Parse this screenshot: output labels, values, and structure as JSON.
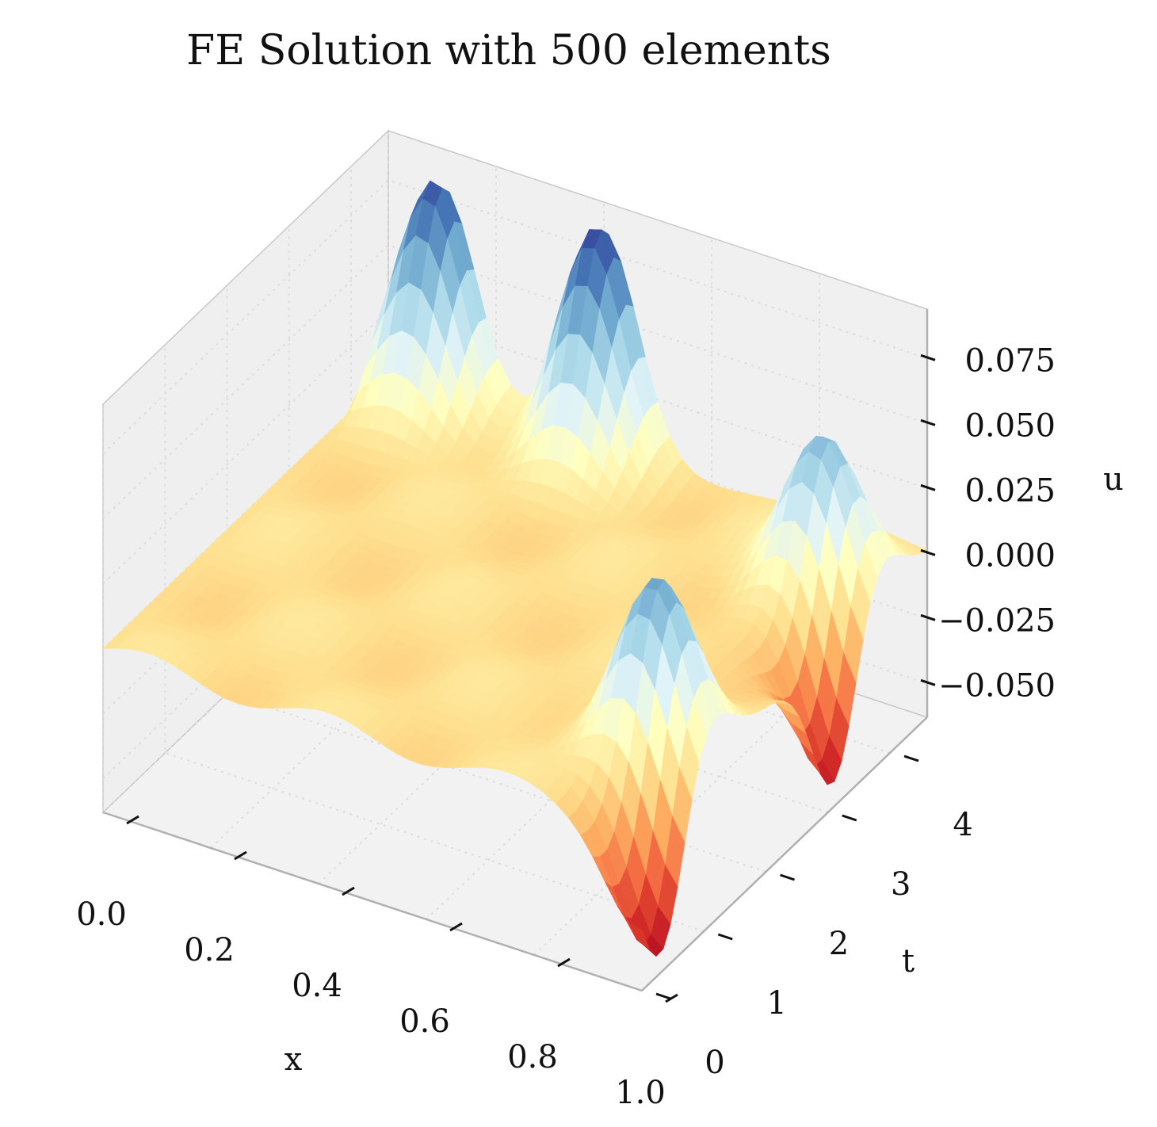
{
  "chart_data": {
    "type": "surface3d",
    "title": "FE Solution with 500 elements",
    "xlabel": "x",
    "ylabel": "t",
    "zlabel": "u",
    "xlim": [
      0.0,
      1.0
    ],
    "ylim": [
      0.0,
      4.6
    ],
    "zlim": [
      -0.063,
      0.094
    ],
    "xticks": [
      "0.0",
      "0.2",
      "0.4",
      "0.6",
      "0.8",
      "1.0"
    ],
    "yticks": [
      "0",
      "1",
      "2",
      "3",
      "4"
    ],
    "zticks": [
      "−0.050",
      "−0.025",
      "0.000",
      "0.025",
      "0.050",
      "0.075"
    ],
    "x": [
      0.0,
      0.1,
      0.2,
      0.3,
      0.4,
      0.5,
      0.6,
      0.7,
      0.8,
      0.9,
      1.0
    ],
    "t": [
      0.0,
      0.5,
      1.0,
      1.5,
      2.0,
      2.5,
      3.0,
      3.5,
      4.0,
      4.5
    ],
    "peaks": [
      {
        "x": 0.1,
        "t": 4.5,
        "u": 0.082
      },
      {
        "x": 0.4,
        "t": 4.5,
        "u": 0.085
      },
      {
        "x": 0.9,
        "t": 1.1,
        "u": 0.061
      },
      {
        "x": 0.9,
        "t": 3.8,
        "u": 0.06
      }
    ],
    "troughs": [
      {
        "x": 1.0,
        "t": 0.3,
        "u": -0.057
      },
      {
        "x": 1.0,
        "t": 3.1,
        "u": -0.056
      }
    ],
    "colormap": "RdYlBu",
    "grid": true,
    "legend": "none"
  },
  "colors": {
    "pane": "#f2f2f2",
    "pane_edge": "#c8c8c8",
    "grid": "#dcdcdc",
    "low": "#a50026",
    "high": "#313695"
  }
}
